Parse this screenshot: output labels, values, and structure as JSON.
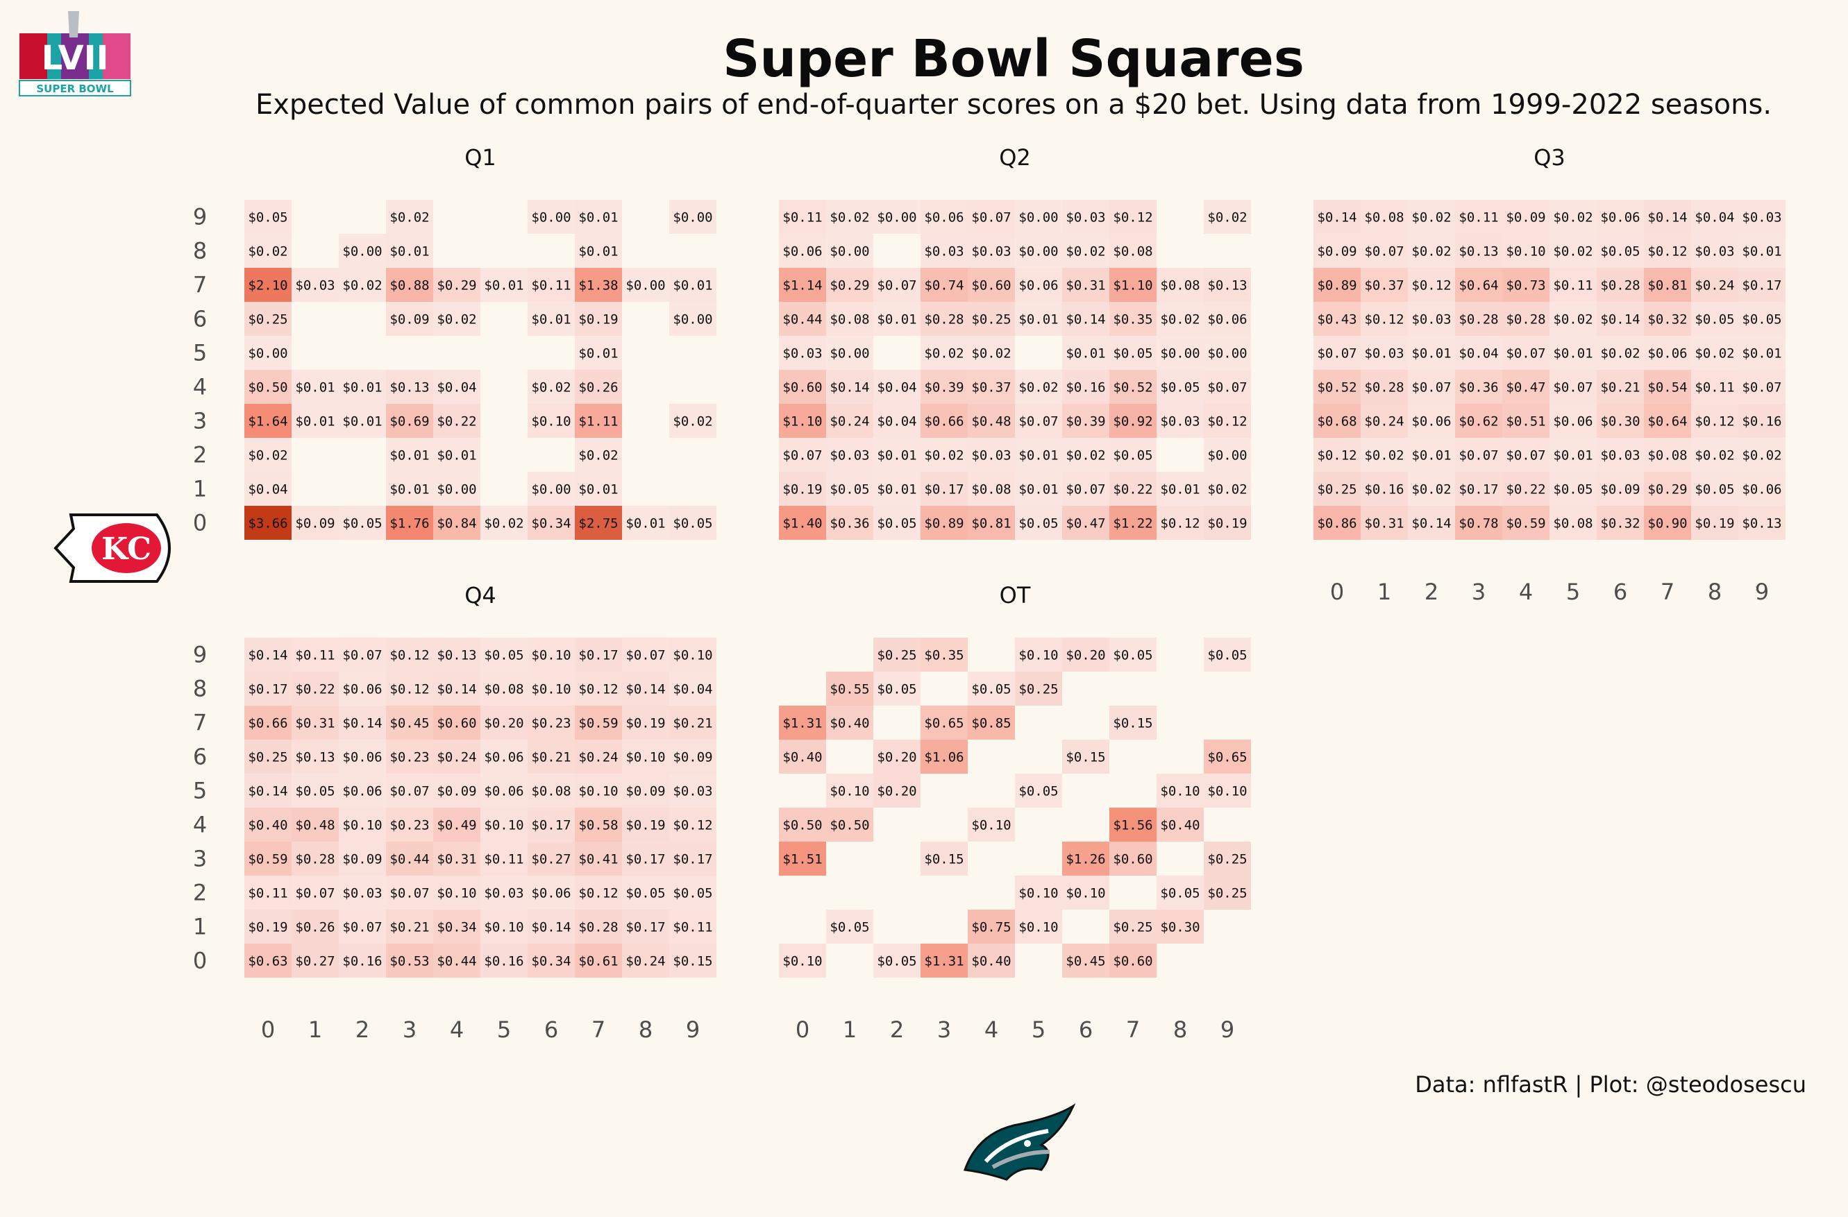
{
  "header": {
    "title": "Super Bowl Squares",
    "subtitle": "Expected Value of common pairs of end-of-quarter scores on a $20 bet. Using data from 1999-2022 seasons.",
    "caption": "Data: nflfastR | Plot: @steodosescu"
  },
  "logos": {
    "superbowl": {
      "text": "SUPER BOWL",
      "numeral": "LVII",
      "colors": [
        "#c8102e",
        "#00a3ad",
        "#7b2d8e",
        "#f7a600"
      ]
    },
    "chiefs": {
      "text": "KC",
      "color": "#e31837",
      "accent": "#ffb612"
    },
    "eagles": {
      "color": "#004c54",
      "accent": "#a5acaf"
    }
  },
  "colors": {
    "low": "#fbe6e2",
    "mid": "#f4836a",
    "high": "#c23a16",
    "background": "#fdf8ef",
    "axis_text": "#4d4d4d"
  },
  "chart_data": {
    "type": "heatmap",
    "x_categories": [
      "0",
      "1",
      "2",
      "3",
      "4",
      "5",
      "6",
      "7",
      "8",
      "9"
    ],
    "y_categories": [
      "0",
      "1",
      "2",
      "3",
      "4",
      "5",
      "6",
      "7",
      "8",
      "9"
    ],
    "panels": [
      {
        "label": "Q1",
        "rows": {
          "9": [
            "$0.05",
            null,
            null,
            "$0.02",
            null,
            null,
            "$0.00",
            "$0.01",
            null,
            "$0.00"
          ],
          "8": [
            "$0.02",
            null,
            "$0.00",
            "$0.01",
            null,
            null,
            null,
            "$0.01",
            null,
            null
          ],
          "7": [
            "$2.10",
            "$0.03",
            "$0.02",
            "$0.88",
            "$0.29",
            "$0.01",
            "$0.11",
            "$1.38",
            "$0.00",
            "$0.01"
          ],
          "6": [
            "$0.25",
            null,
            null,
            "$0.09",
            "$0.02",
            null,
            "$0.01",
            "$0.19",
            null,
            "$0.00"
          ],
          "5": [
            "$0.00",
            null,
            null,
            null,
            null,
            null,
            null,
            "$0.01",
            null,
            null
          ],
          "4": [
            "$0.50",
            "$0.01",
            "$0.01",
            "$0.13",
            "$0.04",
            null,
            "$0.02",
            "$0.26",
            null,
            null
          ],
          "3": [
            "$1.64",
            "$0.01",
            "$0.01",
            "$0.69",
            "$0.22",
            null,
            "$0.10",
            "$1.11",
            null,
            "$0.02"
          ],
          "2": [
            "$0.02",
            null,
            null,
            "$0.01",
            "$0.01",
            null,
            null,
            "$0.02",
            null,
            null
          ],
          "1": [
            "$0.04",
            null,
            null,
            "$0.01",
            "$0.00",
            null,
            "$0.00",
            "$0.01",
            null,
            null
          ],
          "0": [
            "$3.66",
            "$0.09",
            "$0.05",
            "$1.76",
            "$0.84",
            "$0.02",
            "$0.34",
            "$2.75",
            "$0.01",
            "$0.05"
          ]
        }
      },
      {
        "label": "Q2",
        "rows": {
          "9": [
            "$0.11",
            "$0.02",
            "$0.00",
            "$0.06",
            "$0.07",
            "$0.00",
            "$0.03",
            "$0.12",
            null,
            "$0.02"
          ],
          "8": [
            "$0.06",
            "$0.00",
            null,
            "$0.03",
            "$0.03",
            "$0.00",
            "$0.02",
            "$0.08",
            null,
            null
          ],
          "7": [
            "$1.14",
            "$0.29",
            "$0.07",
            "$0.74",
            "$0.60",
            "$0.06",
            "$0.31",
            "$1.10",
            "$0.08",
            "$0.13"
          ],
          "6": [
            "$0.44",
            "$0.08",
            "$0.01",
            "$0.28",
            "$0.25",
            "$0.01",
            "$0.14",
            "$0.35",
            "$0.02",
            "$0.06"
          ],
          "5": [
            "$0.03",
            "$0.00",
            null,
            "$0.02",
            "$0.02",
            null,
            "$0.01",
            "$0.05",
            "$0.00",
            "$0.00"
          ],
          "4": [
            "$0.60",
            "$0.14",
            "$0.04",
            "$0.39",
            "$0.37",
            "$0.02",
            "$0.16",
            "$0.52",
            "$0.05",
            "$0.07"
          ],
          "3": [
            "$1.10",
            "$0.24",
            "$0.04",
            "$0.66",
            "$0.48",
            "$0.07",
            "$0.39",
            "$0.92",
            "$0.03",
            "$0.12"
          ],
          "2": [
            "$0.07",
            "$0.03",
            "$0.01",
            "$0.02",
            "$0.03",
            "$0.01",
            "$0.02",
            "$0.05",
            null,
            "$0.00"
          ],
          "1": [
            "$0.19",
            "$0.05",
            "$0.01",
            "$0.17",
            "$0.08",
            "$0.01",
            "$0.07",
            "$0.22",
            "$0.01",
            "$0.02"
          ],
          "0": [
            "$1.40",
            "$0.36",
            "$0.05",
            "$0.89",
            "$0.81",
            "$0.05",
            "$0.47",
            "$1.22",
            "$0.12",
            "$0.19"
          ]
        }
      },
      {
        "label": "Q3",
        "rows": {
          "9": [
            "$0.14",
            "$0.08",
            "$0.02",
            "$0.11",
            "$0.09",
            "$0.02",
            "$0.06",
            "$0.14",
            "$0.04",
            "$0.03"
          ],
          "8": [
            "$0.09",
            "$0.07",
            "$0.02",
            "$0.13",
            "$0.10",
            "$0.02",
            "$0.05",
            "$0.12",
            "$0.03",
            "$0.01"
          ],
          "7": [
            "$0.89",
            "$0.37",
            "$0.12",
            "$0.64",
            "$0.73",
            "$0.11",
            "$0.28",
            "$0.81",
            "$0.24",
            "$0.17"
          ],
          "6": [
            "$0.43",
            "$0.12",
            "$0.03",
            "$0.28",
            "$0.28",
            "$0.02",
            "$0.14",
            "$0.32",
            "$0.05",
            "$0.05"
          ],
          "5": [
            "$0.07",
            "$0.03",
            "$0.01",
            "$0.04",
            "$0.07",
            "$0.01",
            "$0.02",
            "$0.06",
            "$0.02",
            "$0.01"
          ],
          "4": [
            "$0.52",
            "$0.28",
            "$0.07",
            "$0.36",
            "$0.47",
            "$0.07",
            "$0.21",
            "$0.54",
            "$0.11",
            "$0.07"
          ],
          "3": [
            "$0.68",
            "$0.24",
            "$0.06",
            "$0.62",
            "$0.51",
            "$0.06",
            "$0.30",
            "$0.64",
            "$0.12",
            "$0.16"
          ],
          "2": [
            "$0.12",
            "$0.02",
            "$0.01",
            "$0.07",
            "$0.07",
            "$0.01",
            "$0.03",
            "$0.08",
            "$0.02",
            "$0.02"
          ],
          "1": [
            "$0.25",
            "$0.16",
            "$0.02",
            "$0.17",
            "$0.22",
            "$0.05",
            "$0.09",
            "$0.29",
            "$0.05",
            "$0.06"
          ],
          "0": [
            "$0.86",
            "$0.31",
            "$0.14",
            "$0.78",
            "$0.59",
            "$0.08",
            "$0.32",
            "$0.90",
            "$0.19",
            "$0.13"
          ]
        }
      },
      {
        "label": "Q4",
        "rows": {
          "9": [
            "$0.14",
            "$0.11",
            "$0.07",
            "$0.12",
            "$0.13",
            "$0.05",
            "$0.10",
            "$0.17",
            "$0.07",
            "$0.10"
          ],
          "8": [
            "$0.17",
            "$0.22",
            "$0.06",
            "$0.12",
            "$0.14",
            "$0.08",
            "$0.10",
            "$0.12",
            "$0.14",
            "$0.04"
          ],
          "7": [
            "$0.66",
            "$0.31",
            "$0.14",
            "$0.45",
            "$0.60",
            "$0.20",
            "$0.23",
            "$0.59",
            "$0.19",
            "$0.21"
          ],
          "6": [
            "$0.25",
            "$0.13",
            "$0.06",
            "$0.23",
            "$0.24",
            "$0.06",
            "$0.21",
            "$0.24",
            "$0.10",
            "$0.09"
          ],
          "5": [
            "$0.14",
            "$0.05",
            "$0.06",
            "$0.07",
            "$0.09",
            "$0.06",
            "$0.08",
            "$0.10",
            "$0.09",
            "$0.03"
          ],
          "4": [
            "$0.40",
            "$0.48",
            "$0.10",
            "$0.23",
            "$0.49",
            "$0.10",
            "$0.17",
            "$0.58",
            "$0.19",
            "$0.12"
          ],
          "3": [
            "$0.59",
            "$0.28",
            "$0.09",
            "$0.44",
            "$0.31",
            "$0.11",
            "$0.27",
            "$0.41",
            "$0.17",
            "$0.17"
          ],
          "2": [
            "$0.11",
            "$0.07",
            "$0.03",
            "$0.07",
            "$0.10",
            "$0.03",
            "$0.06",
            "$0.12",
            "$0.05",
            "$0.05"
          ],
          "1": [
            "$0.19",
            "$0.26",
            "$0.07",
            "$0.21",
            "$0.34",
            "$0.10",
            "$0.14",
            "$0.28",
            "$0.17",
            "$0.11"
          ],
          "0": [
            "$0.63",
            "$0.27",
            "$0.16",
            "$0.53",
            "$0.44",
            "$0.16",
            "$0.34",
            "$0.61",
            "$0.24",
            "$0.15"
          ]
        }
      },
      {
        "label": "OT",
        "rows": {
          "9": [
            null,
            null,
            "$0.25",
            "$0.35",
            null,
            "$0.10",
            "$0.20",
            "$0.05",
            null,
            "$0.05"
          ],
          "8": [
            null,
            "$0.55",
            "$0.05",
            null,
            "$0.05",
            "$0.25",
            null,
            null,
            null,
            null
          ],
          "7": [
            "$1.31",
            "$0.40",
            null,
            "$0.65",
            "$0.85",
            null,
            null,
            "$0.15",
            null,
            null
          ],
          "6": [
            "$0.40",
            null,
            "$0.20",
            "$1.06",
            null,
            null,
            "$0.15",
            null,
            null,
            "$0.65"
          ],
          "5": [
            null,
            "$0.10",
            "$0.20",
            null,
            null,
            "$0.05",
            null,
            null,
            "$0.10",
            "$0.10"
          ],
          "4": [
            "$0.50",
            "$0.50",
            null,
            null,
            "$0.10",
            null,
            null,
            "$1.56",
            "$0.40",
            null
          ],
          "3": [
            "$1.51",
            null,
            null,
            "$0.15",
            null,
            null,
            "$1.26",
            "$0.60",
            null,
            "$0.25"
          ],
          "2": [
            null,
            null,
            null,
            null,
            null,
            "$0.10",
            "$0.10",
            null,
            "$0.05",
            "$0.25"
          ],
          "1": [
            null,
            "$0.05",
            null,
            null,
            "$0.75",
            "$0.10",
            null,
            "$0.25",
            "$0.30",
            null
          ],
          "0": [
            "$0.10",
            null,
            "$0.05",
            "$1.31",
            "$0.40",
            null,
            "$0.45",
            "$0.60",
            null,
            null
          ]
        }
      }
    ]
  }
}
